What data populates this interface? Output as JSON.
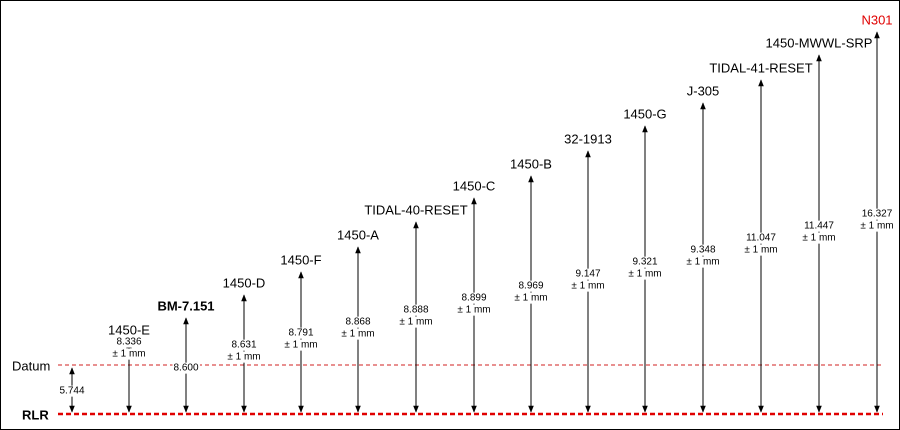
{
  "baseline": {
    "label": "RLR"
  },
  "datum": {
    "label": "Datum",
    "value": "5.744"
  },
  "items": [
    {
      "label": "1450-E",
      "value": "8.336",
      "tolerance": "± 1 mm"
    },
    {
      "label": "BM-7.151",
      "value": "8.600",
      "bold": true
    },
    {
      "label": "1450-D",
      "value": "8.631",
      "tolerance": "± 1 mm"
    },
    {
      "label": "1450-F",
      "value": "8.791",
      "tolerance": "± 1 mm"
    },
    {
      "label": "1450-A",
      "value": "8.868",
      "tolerance": "± 1 mm"
    },
    {
      "label": "TIDAL-40-RESET",
      "value": "8.888",
      "tolerance": "± 1 mm"
    },
    {
      "label": "1450-C",
      "value": "8.899",
      "tolerance": "± 1 mm"
    },
    {
      "label": "1450-B",
      "value": "8.969",
      "tolerance": "± 1 mm"
    },
    {
      "label": "32-1913",
      "value": "9.147",
      "tolerance": "± 1 mm"
    },
    {
      "label": "1450-G",
      "value": "9.321",
      "tolerance": "± 1 mm"
    },
    {
      "label": "J-305",
      "value": "9.348",
      "tolerance": "± 1 mm"
    },
    {
      "label": "TIDAL-41-RESET",
      "value": "11.047",
      "tolerance": "± 1 mm"
    },
    {
      "label": "1450-MWWL-SRP",
      "value": "11.447",
      "tolerance": "± 1 mm"
    },
    {
      "label": "N301",
      "value": "16.327",
      "tolerance": "± 1 mm",
      "color": "#e00000"
    }
  ]
}
